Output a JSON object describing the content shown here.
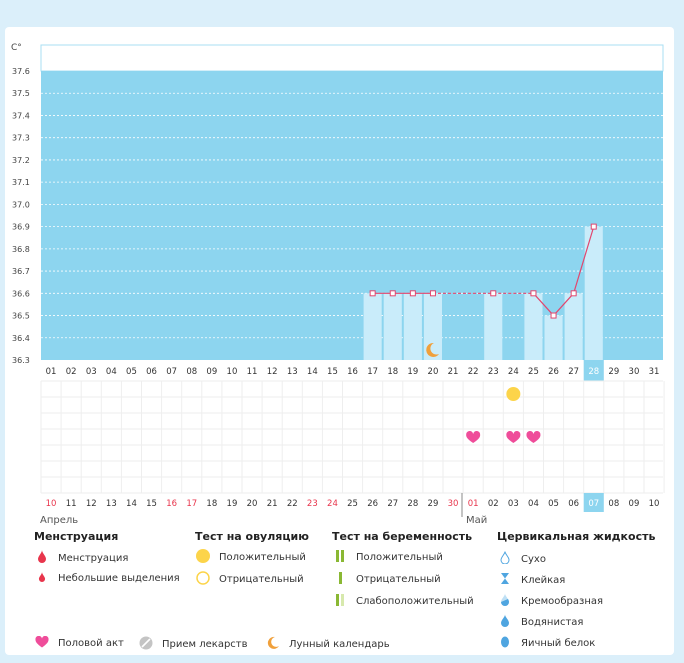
{
  "chart_data": {
    "type": "bar+line",
    "y_unit": "C°",
    "ylim": [
      36.3,
      37.6
    ],
    "y_ticks": [
      "37.6",
      "37.5",
      "37.4",
      "37.3",
      "37.2",
      "37.1",
      "37.0",
      "36.9",
      "36.8",
      "36.7",
      "36.6",
      "36.5",
      "36.4",
      "36.3"
    ],
    "cycle_days": [
      "01",
      "02",
      "03",
      "04",
      "05",
      "06",
      "07",
      "08",
      "09",
      "10",
      "11",
      "12",
      "13",
      "14",
      "15",
      "16",
      "17",
      "18",
      "19",
      "20",
      "21",
      "22",
      "23",
      "24",
      "25",
      "26",
      "27",
      "28",
      "29",
      "30",
      "31"
    ],
    "current_day": "28",
    "temperatures": [
      {
        "day": "17",
        "value": 36.6
      },
      {
        "day": "18",
        "value": 36.6
      },
      {
        "day": "19",
        "value": 36.6
      },
      {
        "day": "20",
        "value": 36.6
      },
      {
        "day": "23",
        "value": 36.6
      },
      {
        "day": "25",
        "value": 36.6
      },
      {
        "day": "26",
        "value": 36.5
      },
      {
        "day": "27",
        "value": 36.6
      },
      {
        "day": "28",
        "value": 36.9
      }
    ],
    "moon_days": [
      "20"
    ],
    "ovulation_positive_days": [
      "24"
    ],
    "intercourse_days": [
      "22",
      "24",
      "25"
    ],
    "dates": [
      "10",
      "11",
      "12",
      "13",
      "14",
      "15",
      "16",
      "17",
      "18",
      "19",
      "20",
      "21",
      "22",
      "23",
      "24",
      "25",
      "26",
      "27",
      "28",
      "29",
      "30",
      "01",
      "02",
      "03",
      "04",
      "05",
      "06",
      "07",
      "08",
      "09",
      "10"
    ],
    "weekend_date_indices": [
      0,
      6,
      7,
      13,
      14,
      20,
      21,
      27
    ],
    "today_date": "07",
    "months": {
      "first": "Апрель",
      "second": "Май"
    }
  },
  "legend": {
    "menstruation": {
      "title": "Менструация",
      "items": [
        "Менструация",
        "Небольшие выделения"
      ]
    },
    "ovulation_test": {
      "title": "Тест на овуляцию",
      "items": [
        "Положительный",
        "Отрицательный"
      ]
    },
    "pregnancy_test": {
      "title": "Тест на беременность",
      "items": [
        "Положительный",
        "Отрицательный",
        "Слабоположительный"
      ]
    },
    "cervical_fluid": {
      "title": "Цервикальная жидкость",
      "items": [
        "Сухо",
        "Клейкая",
        "Кремообразная",
        "Водянистая",
        "Яичный белок"
      ]
    },
    "bottom": {
      "intercourse": "Половой акт",
      "medication": "Прием лекарств",
      "lunar": "Лунный календарь"
    }
  },
  "colors": {
    "chart_bg": "#8dd5ef",
    "bar": "#c9ecfa",
    "line": "#e2466e",
    "heart": "#ef4d9a",
    "ovulation": "#fcd44a",
    "weekend": "#e8354c",
    "pregnancy": "#8ab833",
    "moon": "#f0a03b",
    "drop_red": "#e8354c",
    "drop_blue": "#4fa5e0"
  }
}
